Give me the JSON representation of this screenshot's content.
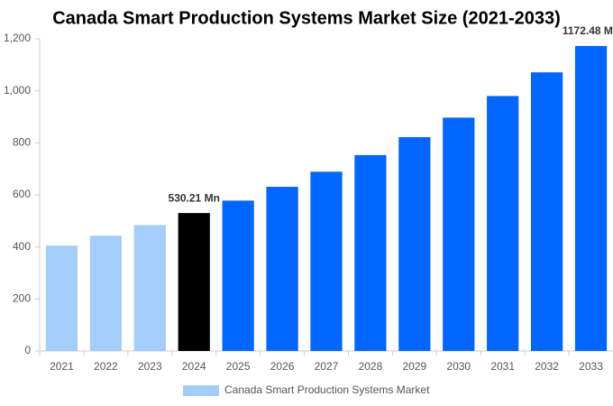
{
  "chart_data": {
    "type": "bar",
    "title": "Canada Smart Production Systems Market Size (2021-2033)",
    "categories": [
      "2021",
      "2022",
      "2023",
      "2024",
      "2025",
      "2026",
      "2027",
      "2028",
      "2029",
      "2030",
      "2031",
      "2032",
      "2033"
    ],
    "series": [
      {
        "name": "Canada Smart Production Systems Market",
        "color": "#a3cdfb",
        "colors": [
          "#a3cdfb",
          "#a3cdfb",
          "#a3cdfb",
          "#000000",
          "#0066ff",
          "#0066ff",
          "#0066ff",
          "#0066ff",
          "#0066ff",
          "#0066ff",
          "#0066ff",
          "#0066ff",
          "#0066ff"
        ],
        "values": [
          405,
          443,
          484,
          530.21,
          578,
          631,
          689,
          753,
          822,
          897,
          980,
          1071,
          1172.48
        ],
        "value_labels": [
          null,
          null,
          null,
          "530.21 Mn",
          null,
          null,
          null,
          null,
          null,
          null,
          null,
          null,
          "1172.48 Mn"
        ]
      }
    ],
    "ylim": [
      0,
      1200
    ],
    "yticks": [
      0,
      200,
      400,
      600,
      800,
      {
        "value": 1000,
        "label": "1,000"
      },
      {
        "value": 1200,
        "label": "1,200"
      }
    ],
    "grid": false,
    "legend": "bottom"
  }
}
